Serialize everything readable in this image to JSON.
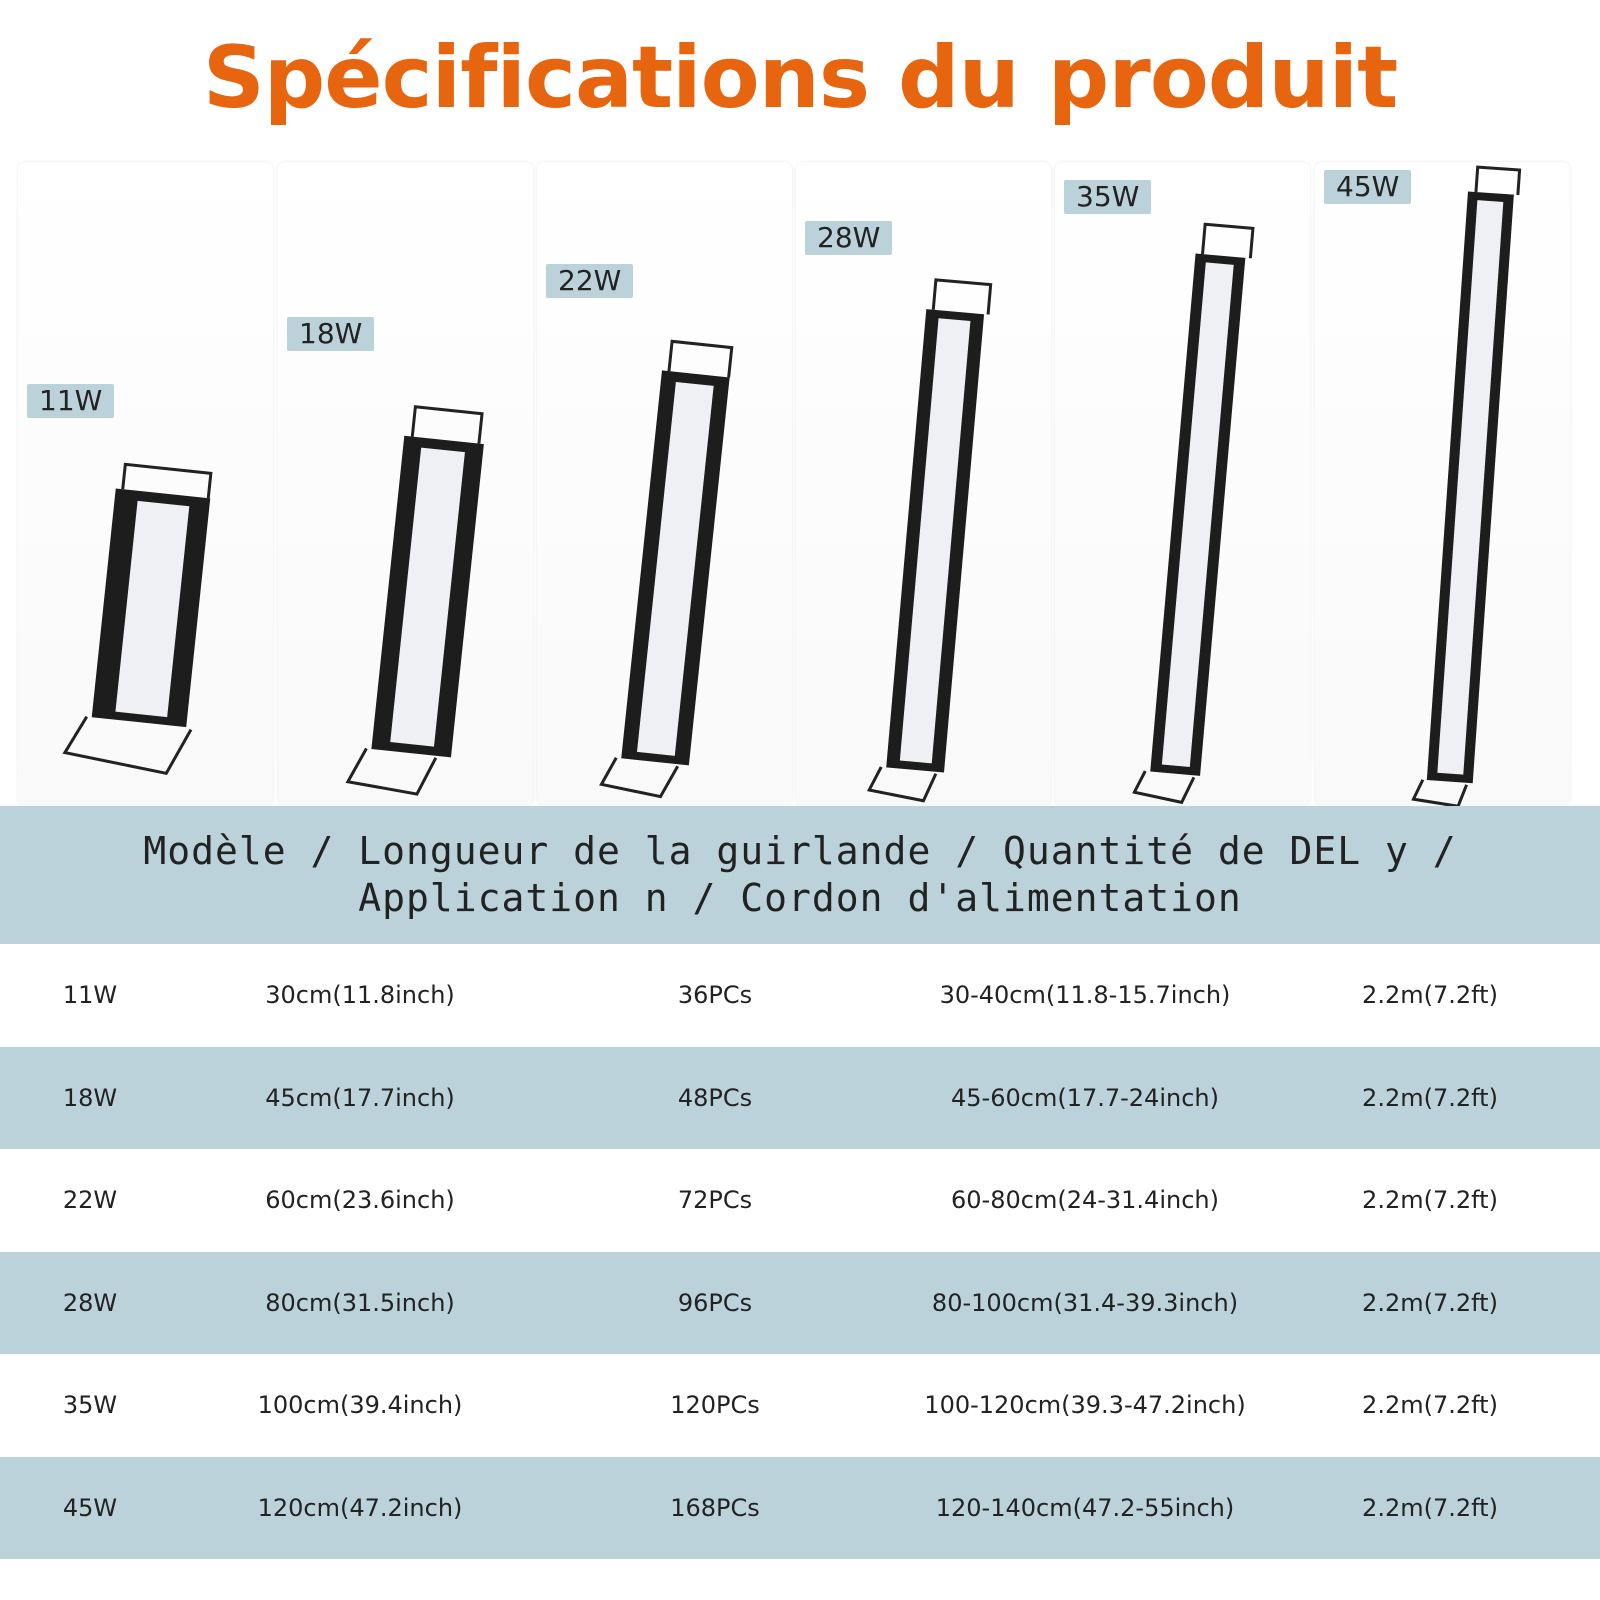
{
  "title": "Spécifications du produit",
  "products": [
    {
      "badge": "11W"
    },
    {
      "badge": "18W"
    },
    {
      "badge": "22W"
    },
    {
      "badge": "28W"
    },
    {
      "badge": "35W"
    },
    {
      "badge": "45W"
    }
  ],
  "header": {
    "line1": "Modèle / Longueur de la guirlande / Quantité de DEL y /",
    "line2": "Application n / Cordon d'alimentation"
  },
  "rows": [
    {
      "model": "11W",
      "length": "30cm(11.8inch)",
      "leds": "36PCs",
      "application": "30-40cm(11.8-15.7inch)",
      "cord": "2.2m(7.2ft)"
    },
    {
      "model": "18W",
      "length": "45cm(17.7inch)",
      "leds": "48PCs",
      "application": "45-60cm(17.7-24inch)",
      "cord": "2.2m(7.2ft)"
    },
    {
      "model": "22W",
      "length": "60cm(23.6inch)",
      "leds": "72PCs",
      "application": "60-80cm(24-31.4inch)",
      "cord": "2.2m(7.2ft)"
    },
    {
      "model": "28W",
      "length": "80cm(31.5inch)",
      "leds": "96PCs",
      "application": "80-100cm(31.4-39.3inch)",
      "cord": "2.2m(7.2ft)"
    },
    {
      "model": "35W",
      "length": "100cm(39.4inch)",
      "leds": "120PCs",
      "application": "100-120cm(39.3-47.2inch)",
      "cord": "2.2m(7.2ft)"
    },
    {
      "model": "45W",
      "length": "120cm(47.2inch)",
      "leds": "168PCs",
      "application": "120-140cm(47.2-55inch)",
      "cord": "2.2m(7.2ft)"
    }
  ],
  "colors": {
    "accent": "#e8650f",
    "band": "#bcd2da"
  }
}
